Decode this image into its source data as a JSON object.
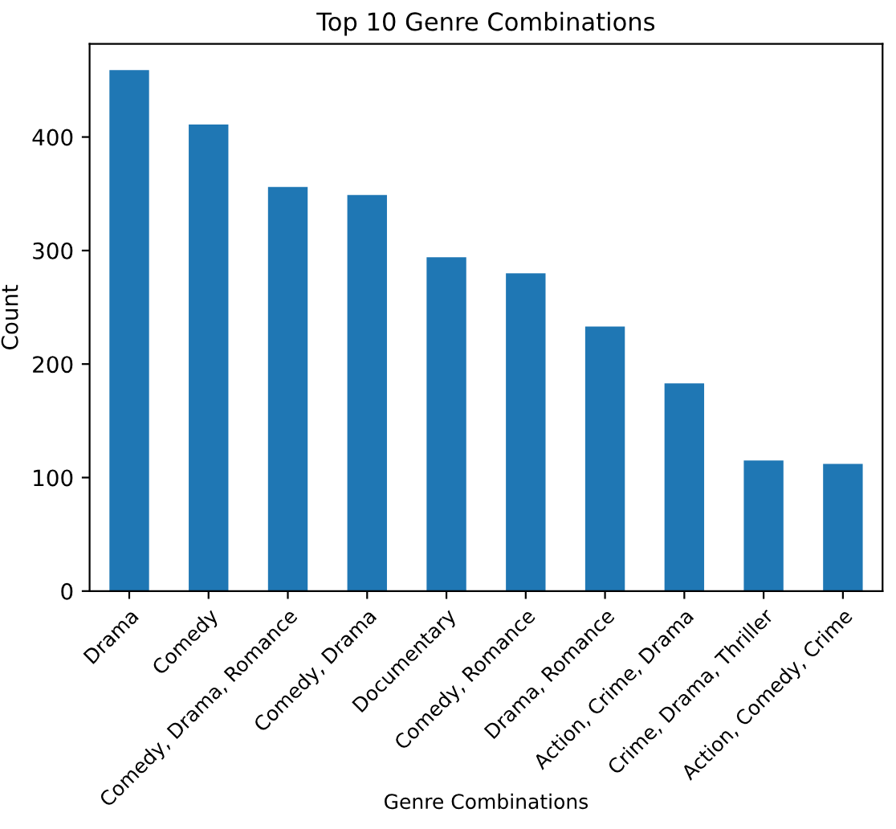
{
  "chart_data": {
    "type": "bar",
    "title": "Top 10 Genre Combinations",
    "xlabel": "Genre Combinations",
    "ylabel": "Count",
    "categories": [
      "Drama",
      "Comedy",
      "Comedy, Drama, Romance",
      "Comedy, Drama",
      "Documentary",
      "Comedy, Romance",
      "Drama, Romance",
      "Action, Crime, Drama",
      "Crime, Drama, Thriller",
      "Action, Comedy, Crime"
    ],
    "values": [
      459,
      411,
      356,
      349,
      294,
      280,
      233,
      183,
      115,
      112
    ],
    "color": "#1f77b4",
    "ylim": [
      0,
      482
    ],
    "yticks": [
      0,
      100,
      200,
      300,
      400
    ],
    "grid": false,
    "legend": false
  }
}
